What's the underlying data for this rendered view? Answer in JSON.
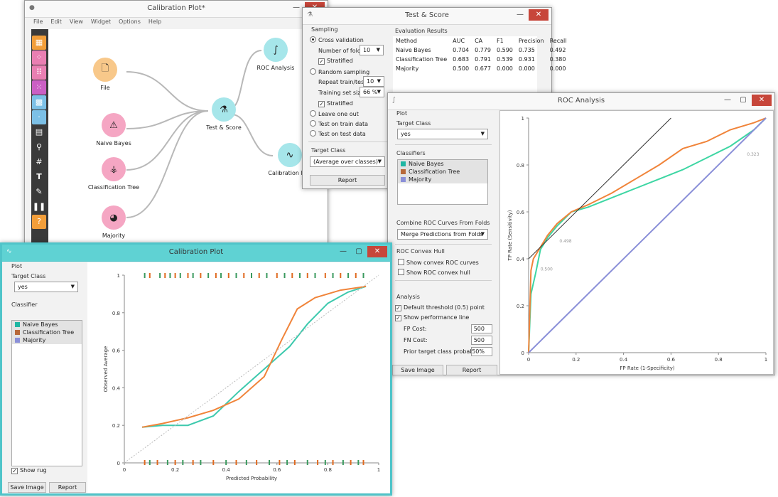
{
  "canvas_window": {
    "title": "Calibration Plot*",
    "menu": [
      "File",
      "Edit",
      "View",
      "Widget",
      "Options",
      "Help"
    ],
    "tools": [
      {
        "icon": "table-icon",
        "color": "#f29e3a"
      },
      {
        "icon": "scatter-icon",
        "color": "#e97fb2"
      },
      {
        "icon": "distribution-icon",
        "color": "#e97fb2"
      },
      {
        "icon": "mosaic-icon",
        "color": "#cb5fc4"
      },
      {
        "icon": "heatmap-icon",
        "color": "#7cc0e6"
      },
      {
        "icon": "dots-icon",
        "color": "#7cc0e6"
      },
      {
        "icon": "document-icon",
        "color": "#555555"
      },
      {
        "icon": "search-icon",
        "color": "#555555"
      },
      {
        "icon": "hash-icon",
        "color": "#555555"
      },
      {
        "icon": "text-icon",
        "color": "#555555"
      },
      {
        "icon": "pen-icon",
        "color": "#555555"
      },
      {
        "icon": "pause-icon",
        "color": "#555555"
      },
      {
        "icon": "help-icon",
        "color": "#f29e3a"
      }
    ],
    "nodes": {
      "file": "File",
      "naive_bayes": "Naive Bayes",
      "classification_tree": "Classification Tree",
      "majority": "Majority",
      "test_score": "Test & Score",
      "roc_analysis": "ROC Analysis",
      "calibration_plot": "Calibration Plot"
    }
  },
  "test_score": {
    "title": "Test & Score",
    "sampling_label": "Sampling",
    "cross_validation": "Cross validation",
    "number_of_folds_label": "Number of folds:",
    "number_of_folds_value": "10",
    "stratified_1": "Stratified",
    "random_sampling": "Random sampling",
    "repeat_label": "Repeat train/test:",
    "repeat_value": "10",
    "training_size_label": "Training set size:",
    "training_size_value": "66 %",
    "stratified_2": "Stratified",
    "leave_one_out": "Leave one out",
    "test_on_train": "Test on train data",
    "test_on_test": "Test on test data",
    "target_class_label": "Target Class",
    "target_class_value": "(Average over classes)",
    "report": "Report",
    "evaluation_results": "Evaluation Results",
    "columns": [
      "Method",
      "AUC",
      "CA",
      "F1",
      "Precision",
      "Recall"
    ],
    "rows": [
      [
        "Naive Bayes",
        "0.704",
        "0.779",
        "0.590",
        "0.735",
        "0.492"
      ],
      [
        "Classification Tree",
        "0.683",
        "0.791",
        "0.539",
        "0.931",
        "0.380"
      ],
      [
        "Majority",
        "0.500",
        "0.677",
        "0.000",
        "0.000",
        "0.000"
      ]
    ]
  },
  "roc": {
    "title": "ROC Analysis",
    "plot_label": "Plot",
    "target_class_label": "Target Class",
    "target_class_value": "yes",
    "classifiers_label": "Classifiers",
    "classifiers": [
      {
        "name": "Naive Bayes",
        "color": "#1fb6a3"
      },
      {
        "name": "Classification Tree",
        "color": "#b7693a"
      },
      {
        "name": "Majority",
        "color": "#8a8fd8"
      }
    ],
    "combine_label": "Combine ROC Curves From Folds",
    "combine_value": "Merge Predictions from Folds",
    "convex_hull_label": "ROC Convex Hull",
    "show_convex_curves": "Show convex ROC curves",
    "show_convex_hull": "Show ROC convex hull",
    "analysis_label": "Analysis",
    "default_threshold": "Default threshold (0.5) point",
    "show_performance": "Show performance line",
    "fp_cost_label": "FP Cost:",
    "fp_cost_value": "500",
    "fn_cost_label": "FN Cost:",
    "fn_cost_value": "500",
    "prior_label": "Prior target class probability:",
    "prior_value": "50%",
    "save_image": "Save Image",
    "report": "Report"
  },
  "calibration": {
    "title": "Calibration Plot",
    "plot_label": "Plot",
    "target_class_label": "Target Class",
    "target_class_value": "yes",
    "classifier_label": "Classifier",
    "classifiers": [
      {
        "name": "Naive Bayes",
        "color": "#1fb6a3"
      },
      {
        "name": "Classification Tree",
        "color": "#b7693a"
      },
      {
        "name": "Majority",
        "color": "#8a8fd8"
      }
    ],
    "show_rug": "Show rug",
    "save_image": "Save Image",
    "report": "Report"
  },
  "chart_data": [
    {
      "type": "line",
      "chart": "roc",
      "xlabel": "FP Rate (1-Specificity)",
      "ylabel": "TP Rate (Sensitivity)",
      "xlim": [
        0,
        1
      ],
      "ylim": [
        0,
        1
      ],
      "xticks": [
        "0",
        "0.2",
        "0.4",
        "0.6",
        "0.8",
        "1"
      ],
      "yticks": [
        "0",
        "0.2",
        "0.4",
        "0.6",
        "0.8",
        "1"
      ],
      "annotations": [
        "0.323",
        "0.498",
        "0.500"
      ],
      "series": [
        {
          "name": "Naive Bayes",
          "color": "#3dd6a3",
          "x": [
            0,
            0.01,
            0.03,
            0.05,
            0.08,
            0.12,
            0.18,
            0.25,
            0.35,
            0.45,
            0.55,
            0.65,
            0.75,
            0.85,
            0.95,
            1
          ],
          "y": [
            0,
            0.25,
            0.34,
            0.44,
            0.49,
            0.54,
            0.6,
            0.62,
            0.66,
            0.7,
            0.74,
            0.78,
            0.83,
            0.88,
            0.95,
            1
          ]
        },
        {
          "name": "Classification Tree",
          "color": "#f0843a",
          "x": [
            0,
            0.01,
            0.02,
            0.05,
            0.08,
            0.12,
            0.18,
            0.25,
            0.35,
            0.45,
            0.55,
            0.65,
            0.75,
            0.85,
            0.95,
            1
          ],
          "y": [
            0,
            0.35,
            0.4,
            0.45,
            0.5,
            0.55,
            0.6,
            0.63,
            0.68,
            0.74,
            0.8,
            0.87,
            0.9,
            0.95,
            0.98,
            1
          ]
        },
        {
          "name": "Majority",
          "color": "#8a8fd8",
          "x": [
            0,
            1
          ],
          "y": [
            0,
            1
          ]
        }
      ]
    },
    {
      "type": "line",
      "chart": "calibration",
      "xlabel": "Predicted Probability",
      "ylabel": "Observed Average",
      "xlim": [
        0,
        1
      ],
      "ylim": [
        0,
        1
      ],
      "xticks": [
        "0",
        "0.2",
        "0.4",
        "0.6",
        "0.8",
        "1"
      ],
      "yticks": [
        "0",
        "0.2",
        "0.4",
        "0.6",
        "0.8",
        "1"
      ],
      "series": [
        {
          "name": "Naive Bayes",
          "color": "#3dc9ad",
          "x": [
            0.07,
            0.15,
            0.25,
            0.35,
            0.45,
            0.55,
            0.65,
            0.72,
            0.8,
            0.88,
            0.95
          ],
          "y": [
            0.19,
            0.2,
            0.2,
            0.25,
            0.38,
            0.5,
            0.62,
            0.74,
            0.85,
            0.91,
            0.94
          ]
        },
        {
          "name": "Classification Tree",
          "color": "#f0843a",
          "x": [
            0.07,
            0.15,
            0.25,
            0.35,
            0.45,
            0.55,
            0.62,
            0.68,
            0.75,
            0.85,
            0.95
          ],
          "y": [
            0.19,
            0.21,
            0.24,
            0.28,
            0.34,
            0.46,
            0.66,
            0.82,
            0.88,
            0.92,
            0.94
          ]
        },
        {
          "name": "Majority",
          "color": "#bbbbbb",
          "x": [
            0,
            1
          ],
          "y": [
            0,
            1
          ]
        }
      ],
      "rug_top": [
        0.08,
        0.1,
        0.14,
        0.16,
        0.18,
        0.2,
        0.22,
        0.25,
        0.27,
        0.3,
        0.33,
        0.36,
        0.38,
        0.41,
        0.44,
        0.47,
        0.5,
        0.53,
        0.56,
        0.6,
        0.63,
        0.66,
        0.69,
        0.72,
        0.75,
        0.79,
        0.82,
        0.85,
        0.88,
        0.91,
        0.94
      ],
      "rug_bottom": [
        0.08,
        0.1,
        0.13,
        0.17,
        0.2,
        0.23,
        0.27,
        0.3,
        0.35,
        0.4,
        0.44,
        0.48,
        0.52,
        0.57,
        0.61,
        0.64,
        0.67,
        0.72,
        0.76,
        0.79,
        0.82,
        0.86,
        0.89,
        0.92,
        0.94
      ]
    }
  ]
}
